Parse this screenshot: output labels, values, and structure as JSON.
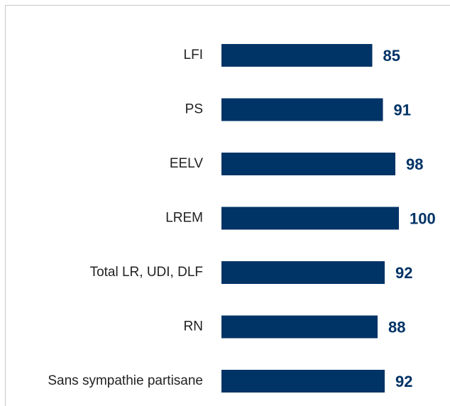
{
  "chart_data": {
    "type": "bar",
    "orientation": "horizontal",
    "categories": [
      "LFI",
      "PS",
      "EELV",
      "LREM",
      "Total LR, UDI, DLF",
      "RN",
      "Sans sympathie partisane"
    ],
    "values": [
      85,
      91,
      98,
      100,
      92,
      88,
      92
    ],
    "color": "#003366",
    "xlim": [
      0,
      100
    ]
  }
}
